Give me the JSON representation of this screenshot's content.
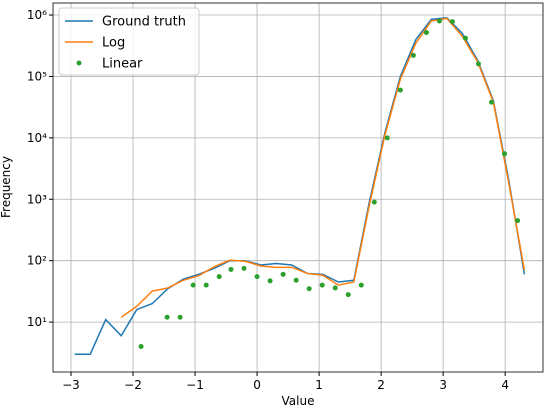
{
  "chart_data": {
    "type": "line",
    "x_label": "Value",
    "y_label": "Frequency",
    "xlim": [
      -3.29,
      4.61
    ],
    "ylim": [
      1.54,
      1570000
    ],
    "log_y": true,
    "grid": true,
    "legend": "upper left",
    "xticks": [
      {
        "value": -3,
        "label": "−3"
      },
      {
        "value": -2,
        "label": "−2"
      },
      {
        "value": -1,
        "label": "−1"
      },
      0,
      1,
      2,
      3,
      4
    ],
    "yticks": [
      {
        "value": 10,
        "label": "10¹"
      },
      {
        "value": 100,
        "label": "10²"
      },
      {
        "value": 1000,
        "label": "10³"
      },
      {
        "value": 10000,
        "label": "10⁴"
      },
      {
        "value": 100000,
        "label": "10⁵"
      },
      {
        "value": 1000000,
        "label": "10⁶"
      }
    ],
    "series": [
      {
        "name": "Ground truth",
        "color": "#1f77b4",
        "kind": "line",
        "x": [
          -2.94,
          -2.69,
          -2.44,
          -2.19,
          -1.94,
          -1.69,
          -1.44,
          -1.19,
          -0.94,
          -0.69,
          -0.44,
          -0.19,
          0.06,
          0.31,
          0.56,
          0.81,
          1.06,
          1.31,
          1.56,
          1.81,
          2.06,
          2.31,
          2.56,
          2.81,
          3.06,
          3.31,
          3.56,
          3.81,
          4.06,
          4.31
        ],
        "values": [
          3,
          3,
          11,
          6,
          16,
          20,
          35,
          50,
          60,
          75,
          100,
          100,
          85,
          90,
          85,
          62,
          60,
          45,
          48,
          900,
          12000,
          100000,
          400000,
          850000,
          900000,
          500000,
          180000,
          40000,
          2000,
          60
        ]
      },
      {
        "name": "Log",
        "color": "#ff7f0e",
        "kind": "line",
        "x": [
          -2.19,
          -1.94,
          -1.69,
          -1.44,
          -1.19,
          -0.94,
          -0.69,
          -0.44,
          -0.19,
          0.06,
          0.31,
          0.56,
          0.81,
          1.06,
          1.31,
          1.56,
          1.81,
          2.06,
          2.31,
          2.56,
          2.81,
          3.06,
          3.31,
          3.56,
          3.81,
          4.06,
          4.31
        ],
        "values": [
          12,
          18,
          32,
          36,
          48,
          57,
          80,
          102,
          98,
          82,
          78,
          78,
          62,
          58,
          40,
          45,
          800,
          11000,
          90000,
          350000,
          800000,
          880000,
          450000,
          170000,
          38000,
          1800,
          70
        ]
      },
      {
        "name": "Linear",
        "color": "#2ca02c",
        "kind": "scatter",
        "x": [
          -1.87,
          -1.45,
          -1.24,
          -1.03,
          -0.82,
          -0.61,
          -0.42,
          -0.21,
          0,
          0.21,
          0.42,
          0.63,
          0.84,
          1.05,
          1.26,
          1.47,
          1.68,
          1.89,
          2.1,
          2.31,
          2.52,
          2.73,
          2.94,
          3.15,
          3.36,
          3.57,
          3.78,
          3.99,
          4.2
        ],
        "values": [
          4,
          12,
          12,
          40,
          40,
          55,
          72,
          75,
          55,
          47,
          60,
          48,
          35,
          40,
          36,
          28,
          40,
          900,
          10000,
          60000,
          220000,
          520000,
          800000,
          780000,
          420000,
          160000,
          38000,
          5500,
          450
        ]
      }
    ]
  }
}
